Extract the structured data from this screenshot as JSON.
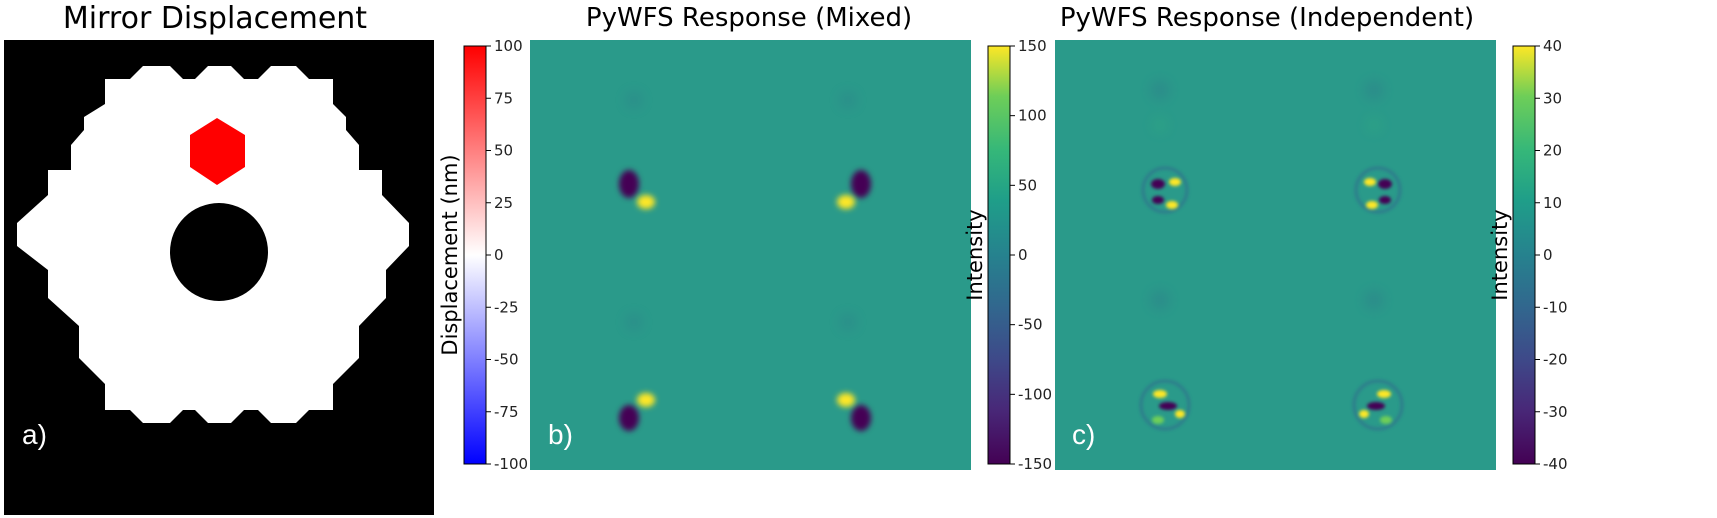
{
  "chart_data": [
    {
      "type": "heatmap",
      "panel": "a)",
      "title": "Mirror Displacement",
      "description_kind": "segmented hexagonal mirror pupil with central obscuration; one segment displaced",
      "segment_value_nm": 100,
      "other_segments_value_nm": 0,
      "colormap": "bwr",
      "colorbar": {
        "label": "Displacement (nm)",
        "range": [
          -100,
          100
        ],
        "ticks": [
          100,
          75,
          50,
          25,
          0,
          -25,
          -50,
          -75,
          -100
        ],
        "colors": [
          "#0000ff",
          "#ffffff",
          "#ff0000"
        ]
      }
    },
    {
      "type": "heatmap",
      "panel": "b)",
      "title": "PyWFS Response (Mixed)",
      "description_kind": "four pupil images, each with a dipole response at the displaced segment",
      "colormap": "viridis",
      "colorbar": {
        "label": "Intensity",
        "range": [
          -150,
          150
        ],
        "ticks": [
          150,
          100,
          50,
          0,
          -50,
          -100,
          -150
        ]
      }
    },
    {
      "type": "heatmap",
      "panel": "c)",
      "title": "PyWFS Response (Independent)",
      "description_kind": "four pupil images with ringing dipole response at the displaced segment",
      "colormap": "viridis",
      "colorbar": {
        "label": "Intensity",
        "range": [
          -40,
          40
        ],
        "ticks": [
          40,
          30,
          20,
          10,
          0,
          -10,
          -20,
          -30,
          -40
        ]
      }
    }
  ],
  "colors": {
    "background": "#000000",
    "mirror": "#ffffff",
    "displaced_segment": "#ff0000",
    "viridis_mid": "#2a9a8a",
    "viridis_low": "#440154",
    "viridis_high": "#fde725"
  }
}
